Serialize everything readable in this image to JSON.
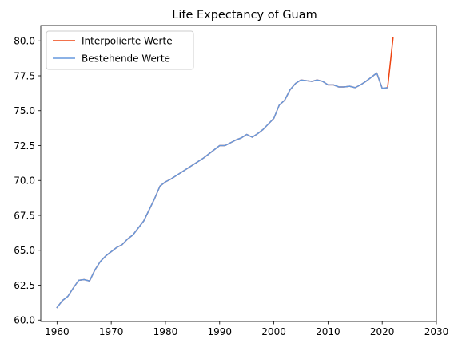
{
  "chart_data": {
    "type": "line",
    "title": "Life Expectancy of Guam",
    "xlabel": "",
    "ylabel": "",
    "xlim": [
      1957,
      2030
    ],
    "ylim": [
      59.9,
      81.1
    ],
    "xticks": [
      1960,
      1970,
      1980,
      1990,
      2000,
      2010,
      2020,
      2030
    ],
    "yticks": [
      60.0,
      62.5,
      65.0,
      67.5,
      70.0,
      72.5,
      75.0,
      77.5,
      80.0
    ],
    "ytick_labels": [
      "60.0",
      "62.5",
      "65.0",
      "67.5",
      "70.0",
      "72.5",
      "75.0",
      "77.5",
      "80.0"
    ],
    "legend_position": "top-left",
    "grid": false,
    "series": [
      {
        "name": "Interpolierte Werte",
        "color": "#EE4411",
        "x": [
          1960,
          1961,
          1962,
          1963,
          1964,
          1965,
          1966,
          1967,
          1968,
          1969,
          1970,
          1971,
          1972,
          1973,
          1974,
          1975,
          1976,
          1977,
          1978,
          1979,
          1980,
          1981,
          1982,
          1983,
          1984,
          1985,
          1986,
          1987,
          1988,
          1989,
          1990,
          1991,
          1992,
          1993,
          1994,
          1995,
          1996,
          1997,
          1998,
          1999,
          2000,
          2001,
          2002,
          2003,
          2004,
          2005,
          2006,
          2007,
          2008,
          2009,
          2010,
          2011,
          2012,
          2013,
          2014,
          2015,
          2016,
          2017,
          2018,
          2019,
          2020,
          2021,
          2022
        ],
        "y": [
          60.9,
          61.4,
          61.7,
          62.3,
          62.85,
          62.9,
          62.8,
          63.6,
          64.2,
          64.6,
          64.9,
          65.2,
          65.4,
          65.8,
          66.1,
          66.6,
          67.1,
          67.9,
          68.7,
          69.6,
          69.9,
          70.1,
          70.35,
          70.6,
          70.85,
          71.1,
          71.35,
          71.6,
          71.9,
          72.2,
          72.5,
          72.5,
          72.7,
          72.9,
          73.05,
          73.3,
          73.1,
          73.35,
          73.65,
          74.05,
          74.45,
          75.4,
          75.75,
          76.5,
          76.95,
          77.2,
          77.15,
          77.1,
          77.2,
          77.1,
          76.85,
          76.85,
          76.7,
          76.7,
          76.75,
          76.65,
          76.85,
          77.1,
          77.4,
          77.7,
          76.6,
          76.65,
          80.2
        ]
      },
      {
        "name": "Bestehende Werte",
        "color": "#6699DD",
        "x": [
          1960,
          1961,
          1962,
          1963,
          1964,
          1965,
          1966,
          1967,
          1968,
          1969,
          1970,
          1971,
          1972,
          1973,
          1974,
          1975,
          1976,
          1977,
          1978,
          1979,
          1980,
          1981,
          1982,
          1983,
          1984,
          1985,
          1986,
          1987,
          1988,
          1989,
          1990,
          1991,
          1992,
          1993,
          1994,
          1995,
          1996,
          1997,
          1998,
          1999,
          2000,
          2001,
          2002,
          2003,
          2004,
          2005,
          2006,
          2007,
          2008,
          2009,
          2010,
          2011,
          2012,
          2013,
          2014,
          2015,
          2016,
          2017,
          2018,
          2019,
          2020,
          2021
        ],
        "y": [
          60.9,
          61.4,
          61.7,
          62.3,
          62.85,
          62.9,
          62.8,
          63.6,
          64.2,
          64.6,
          64.9,
          65.2,
          65.4,
          65.8,
          66.1,
          66.6,
          67.1,
          67.9,
          68.7,
          69.6,
          69.9,
          70.1,
          70.35,
          70.6,
          70.85,
          71.1,
          71.35,
          71.6,
          71.9,
          72.2,
          72.5,
          72.5,
          72.7,
          72.9,
          73.05,
          73.3,
          73.1,
          73.35,
          73.65,
          74.05,
          74.45,
          75.4,
          75.75,
          76.5,
          76.95,
          77.2,
          77.15,
          77.1,
          77.2,
          77.1,
          76.85,
          76.85,
          76.7,
          76.7,
          76.75,
          76.65,
          76.85,
          77.1,
          77.4,
          77.7,
          76.6,
          76.65
        ]
      }
    ]
  }
}
